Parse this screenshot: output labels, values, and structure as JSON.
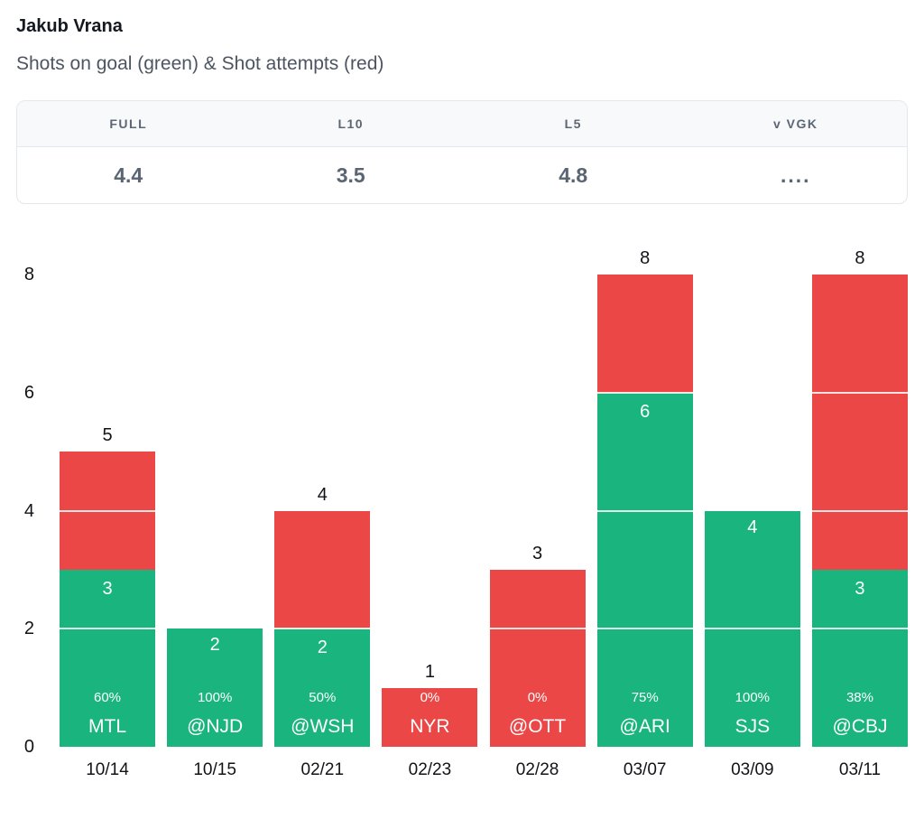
{
  "header": {
    "title": "Jakub Vrana",
    "subtitle": "Shots on goal (green) & Shot attempts (red)"
  },
  "stats": {
    "cols": [
      {
        "label": "FULL",
        "value": "4.4"
      },
      {
        "label": "L10",
        "value": "3.5"
      },
      {
        "label": "L5",
        "value": "4.8"
      },
      {
        "label": "v VGK",
        "value": "...."
      }
    ]
  },
  "chart_data": {
    "type": "bar",
    "stacked": true,
    "title": "Jakub Vrana — Shots on goal (green) & Shot attempts (red)",
    "xlabel": "",
    "ylabel": "",
    "ylim": [
      0,
      8
    ],
    "yticks": [
      0,
      2,
      4,
      6,
      8
    ],
    "grid": "white gridlines drawn over bars at even values",
    "legend": {
      "green": "Shots on goal",
      "red": "Shot attempts"
    },
    "colors": {
      "green": "#1ab47f",
      "red": "#eb4747"
    },
    "games": [
      {
        "date": "10/14",
        "team": "MTL",
        "shot_attempts": 5,
        "shots_on_goal": 3,
        "pct": "60%"
      },
      {
        "date": "10/15",
        "team": "@NJD",
        "shot_attempts": 2,
        "shots_on_goal": 2,
        "pct": "100%"
      },
      {
        "date": "02/21",
        "team": "@WSH",
        "shot_attempts": 4,
        "shots_on_goal": 2,
        "pct": "50%"
      },
      {
        "date": "02/23",
        "team": "NYR",
        "shot_attempts": 1,
        "shots_on_goal": 0,
        "pct": "0%"
      },
      {
        "date": "02/28",
        "team": "@OTT",
        "shot_attempts": 3,
        "shots_on_goal": 0,
        "pct": "0%"
      },
      {
        "date": "03/07",
        "team": "@ARI",
        "shot_attempts": 8,
        "shots_on_goal": 6,
        "pct": "75%"
      },
      {
        "date": "03/09",
        "team": "SJS",
        "shot_attempts": 4,
        "shots_on_goal": 4,
        "pct": "100%"
      },
      {
        "date": "03/11",
        "team": "@CBJ",
        "shot_attempts": 8,
        "shots_on_goal": 3,
        "pct": "38%"
      }
    ]
  }
}
